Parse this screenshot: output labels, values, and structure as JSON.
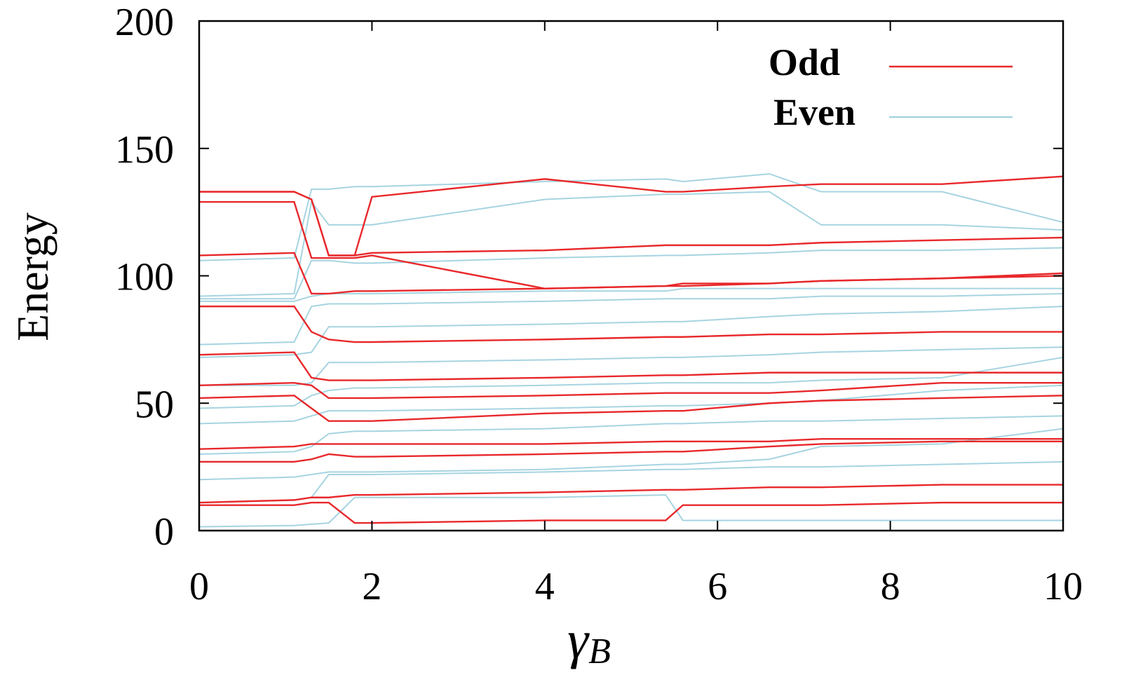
{
  "chart_data": {
    "type": "line",
    "title": "",
    "xlabel": "γ",
    "xlabel_sub": "B",
    "ylabel": "Energy",
    "xlim": [
      0,
      10
    ],
    "ylim": [
      0,
      200
    ],
    "xticks": [
      "0",
      "2",
      "4",
      "6",
      "8",
      "10"
    ],
    "yticks": [
      "0",
      "50",
      "100",
      "150",
      "200"
    ],
    "xtick_values": [
      0,
      2,
      4,
      6,
      8,
      10
    ],
    "ytick_values": [
      0,
      50,
      100,
      150,
      200
    ],
    "grid": false,
    "legend_position": "top-right",
    "x": [
      0,
      1.1,
      1.3,
      1.5,
      1.8,
      2,
      4,
      5.4,
      5.6,
      6.6,
      7.2,
      8.6,
      10
    ],
    "groups": [
      {
        "name": "Odd",
        "color": "#e8282b",
        "lines": [
          [
            133,
            133,
            130,
            108,
            108,
            131,
            138,
            133,
            133,
            135,
            136,
            136,
            139
          ],
          [
            133,
            133,
            130,
            108,
            108,
            109,
            110,
            112,
            112,
            112,
            113,
            114,
            115
          ],
          [
            129,
            129,
            107,
            107,
            107,
            108,
            95,
            96,
            97,
            97,
            98,
            99,
            101
          ],
          [
            108,
            109,
            93,
            93,
            94,
            94,
            95,
            96,
            96,
            97,
            98,
            99,
            100
          ],
          [
            88,
            88,
            78,
            75,
            74,
            74,
            75,
            76,
            76,
            77,
            77,
            78,
            78
          ],
          [
            69,
            70,
            60,
            59,
            59,
            59,
            60,
            61,
            61,
            62,
            62,
            62,
            62
          ],
          [
            57,
            58,
            57,
            52,
            52,
            52,
            53,
            54,
            54,
            54,
            55,
            58,
            58
          ],
          [
            52,
            53,
            48,
            43,
            43,
            43,
            46,
            47,
            47,
            50,
            51,
            52,
            53
          ],
          [
            32,
            33,
            34,
            34,
            34,
            34,
            34,
            35,
            35,
            35,
            36,
            36,
            36
          ],
          [
            27,
            27,
            28,
            30,
            29,
            29,
            30,
            31,
            31,
            33,
            34,
            35,
            35
          ],
          [
            11,
            12,
            13,
            13,
            14,
            14,
            15,
            16,
            16,
            17,
            17,
            18,
            18
          ],
          [
            10,
            10,
            11,
            11,
            3,
            3,
            4,
            4,
            10,
            10,
            10,
            11,
            11
          ]
        ]
      },
      {
        "name": "Even",
        "color": "#a6d4e0",
        "lines": [
          [
            106,
            107,
            134,
            134,
            135,
            135,
            137,
            138,
            137,
            140,
            133,
            133,
            121
          ],
          [
            92,
            93,
            129,
            120,
            120,
            120,
            130,
            132,
            132,
            133,
            120,
            120,
            118
          ],
          [
            91,
            91,
            106,
            106,
            105,
            105,
            107,
            108,
            108,
            109,
            110,
            110,
            111
          ],
          [
            90,
            90,
            92,
            93,
            93,
            93,
            94,
            94,
            95,
            95,
            95,
            95,
            95
          ],
          [
            73,
            74,
            88,
            89,
            89,
            89,
            90,
            91,
            91,
            91,
            92,
            92,
            93
          ],
          [
            68,
            69,
            70,
            80,
            80,
            80,
            81,
            82,
            82,
            84,
            85,
            86,
            88
          ],
          [
            57,
            57,
            58,
            66,
            66,
            66,
            67,
            68,
            68,
            69,
            70,
            71,
            72
          ],
          [
            48,
            49,
            53,
            55,
            56,
            56,
            57,
            58,
            58,
            58,
            59,
            60,
            68
          ],
          [
            42,
            43,
            45,
            47,
            47,
            47,
            48,
            49,
            49,
            50,
            51,
            55,
            57
          ],
          [
            30,
            31,
            33,
            38,
            39,
            39,
            40,
            42,
            42,
            43,
            43,
            44,
            45
          ],
          [
            20,
            21,
            22,
            23,
            23,
            23,
            24,
            26,
            26,
            28,
            33,
            34,
            40
          ],
          [
            11,
            12,
            13,
            22,
            22,
            22,
            23,
            24,
            24,
            25,
            25,
            26,
            27
          ],
          [
            1.5,
            2,
            2.5,
            3,
            13,
            13,
            13,
            14,
            4,
            4,
            4,
            4,
            4
          ]
        ]
      }
    ]
  }
}
